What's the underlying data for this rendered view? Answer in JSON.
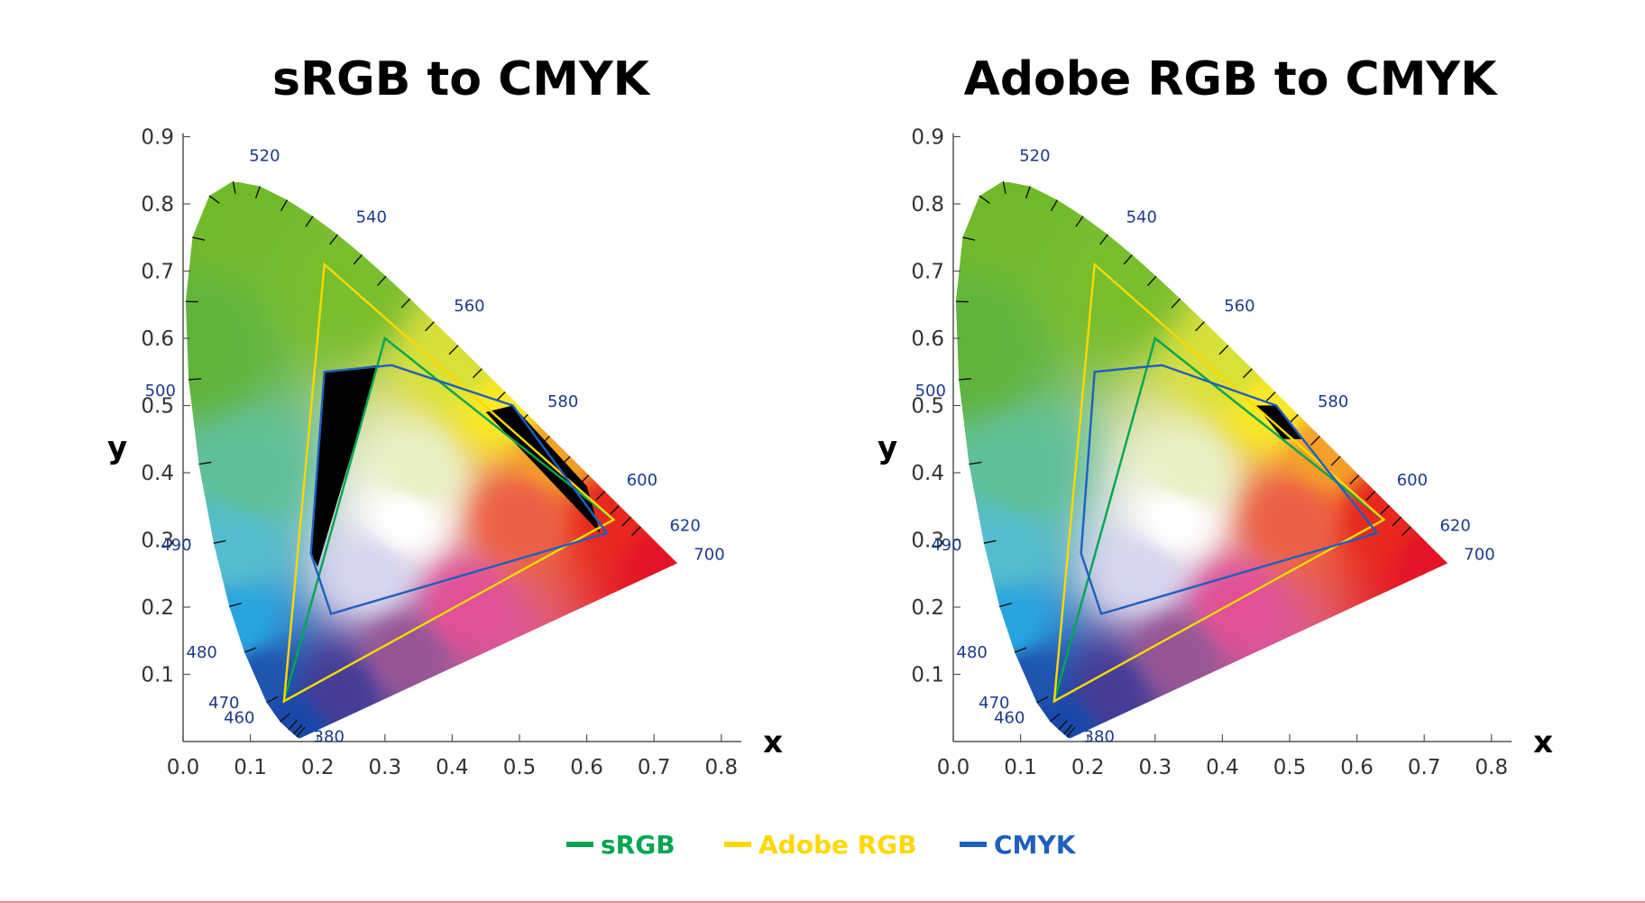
{
  "chart_data": [
    {
      "type": "scatter",
      "subtype": "cie-1931-chromaticity",
      "title": "sRGB to CMYK",
      "xlabel": "x",
      "ylabel": "y",
      "xlim": [
        0.0,
        0.8
      ],
      "ylim": [
        0.0,
        0.9
      ],
      "x_ticks": [
        "0.0",
        "0.1",
        "0.2",
        "0.3",
        "0.4",
        "0.5",
        "0.6",
        "0.7",
        "0.8"
      ],
      "y_ticks": [
        "0.1",
        "0.2",
        "0.3",
        "0.4",
        "0.5",
        "0.6",
        "0.7",
        "0.8",
        "0.9"
      ],
      "wavelength_labels": [
        {
          "text": "380",
          "x": 0.175,
          "y": 0.005
        },
        {
          "text": "460",
          "x": 0.144,
          "y": 0.03
        },
        {
          "text": "470",
          "x": 0.124,
          "y": 0.058
        },
        {
          "text": "480",
          "x": 0.091,
          "y": 0.133
        },
        {
          "text": "490",
          "x": 0.045,
          "y": 0.295
        },
        {
          "text": "500",
          "x": 0.008,
          "y": 0.538
        },
        {
          "text": "520",
          "x": 0.074,
          "y": 0.834
        },
        {
          "text": "540",
          "x": 0.23,
          "y": 0.754
        },
        {
          "text": "560",
          "x": 0.373,
          "y": 0.624
        },
        {
          "text": "580",
          "x": 0.512,
          "y": 0.487
        },
        {
          "text": "600",
          "x": 0.627,
          "y": 0.373
        },
        {
          "text": "620",
          "x": 0.691,
          "y": 0.308
        },
        {
          "text": "700",
          "x": 0.735,
          "y": 0.265
        }
      ],
      "series": [
        {
          "name": "sRGB",
          "color": "#00a651",
          "x": [
            0.64,
            0.3,
            0.15
          ],
          "y": [
            0.33,
            0.6,
            0.06
          ]
        },
        {
          "name": "Adobe RGB",
          "color": "#ffd800",
          "x": [
            0.64,
            0.21,
            0.15
          ],
          "y": [
            0.33,
            0.71,
            0.06
          ]
        },
        {
          "name": "CMYK",
          "color": "#1f5fbf",
          "x": [
            0.21,
            0.31,
            0.49,
            0.63,
            0.22,
            0.19
          ],
          "y": [
            0.55,
            0.56,
            0.5,
            0.31,
            0.19,
            0.28
          ]
        }
      ],
      "outside_regions": [
        {
          "x": [
            0.21,
            0.29,
            0.2,
            0.19
          ],
          "y": [
            0.55,
            0.56,
            0.26,
            0.28
          ]
        },
        {
          "x": [
            0.49,
            0.6,
            0.62,
            0.45
          ],
          "y": [
            0.5,
            0.38,
            0.31,
            0.49
          ]
        }
      ]
    },
    {
      "type": "scatter",
      "subtype": "cie-1931-chromaticity",
      "title": "Adobe RGB to CMYK",
      "xlabel": "x",
      "ylabel": "y",
      "xlim": [
        0.0,
        0.8
      ],
      "ylim": [
        0.0,
        0.9
      ],
      "x_ticks": [
        "0.0",
        "0.1",
        "0.2",
        "0.3",
        "0.4",
        "0.5",
        "0.6",
        "0.7",
        "0.8"
      ],
      "y_ticks": [
        "0.1",
        "0.2",
        "0.3",
        "0.4",
        "0.5",
        "0.6",
        "0.7",
        "0.8",
        "0.9"
      ],
      "wavelength_labels": [
        {
          "text": "380",
          "x": 0.175,
          "y": 0.005
        },
        {
          "text": "460",
          "x": 0.144,
          "y": 0.03
        },
        {
          "text": "470",
          "x": 0.124,
          "y": 0.058
        },
        {
          "text": "480",
          "x": 0.091,
          "y": 0.133
        },
        {
          "text": "490",
          "x": 0.045,
          "y": 0.295
        },
        {
          "text": "500",
          "x": 0.008,
          "y": 0.538
        },
        {
          "text": "520",
          "x": 0.074,
          "y": 0.834
        },
        {
          "text": "540",
          "x": 0.23,
          "y": 0.754
        },
        {
          "text": "560",
          "x": 0.373,
          "y": 0.624
        },
        {
          "text": "580",
          "x": 0.512,
          "y": 0.487
        },
        {
          "text": "600",
          "x": 0.627,
          "y": 0.373
        },
        {
          "text": "620",
          "x": 0.691,
          "y": 0.308
        },
        {
          "text": "700",
          "x": 0.735,
          "y": 0.265
        }
      ],
      "series": [
        {
          "name": "sRGB",
          "color": "#00a651",
          "x": [
            0.64,
            0.3,
            0.15
          ],
          "y": [
            0.33,
            0.6,
            0.06
          ]
        },
        {
          "name": "Adobe RGB",
          "color": "#ffd800",
          "x": [
            0.64,
            0.21,
            0.15
          ],
          "y": [
            0.33,
            0.71,
            0.06
          ]
        },
        {
          "name": "CMYK",
          "color": "#1f5fbf",
          "x": [
            0.21,
            0.31,
            0.48,
            0.63,
            0.22,
            0.19
          ],
          "y": [
            0.55,
            0.56,
            0.5,
            0.31,
            0.19,
            0.28
          ]
        }
      ],
      "outside_regions": [
        {
          "x": [
            0.48,
            0.52,
            0.49,
            0.45
          ],
          "y": [
            0.5,
            0.45,
            0.45,
            0.5
          ]
        }
      ]
    }
  ],
  "legend": [
    {
      "label": "sRGB",
      "color": "#00a651"
    },
    {
      "label": "Adobe RGB",
      "color": "#ffd800"
    },
    {
      "label": "CMYK",
      "color": "#1f5fbf"
    }
  ],
  "colors": {
    "axis": "#555555",
    "tick_label": "#333333",
    "wavelength_label": "#1b3a8c",
    "outside_fill": "#000000"
  }
}
